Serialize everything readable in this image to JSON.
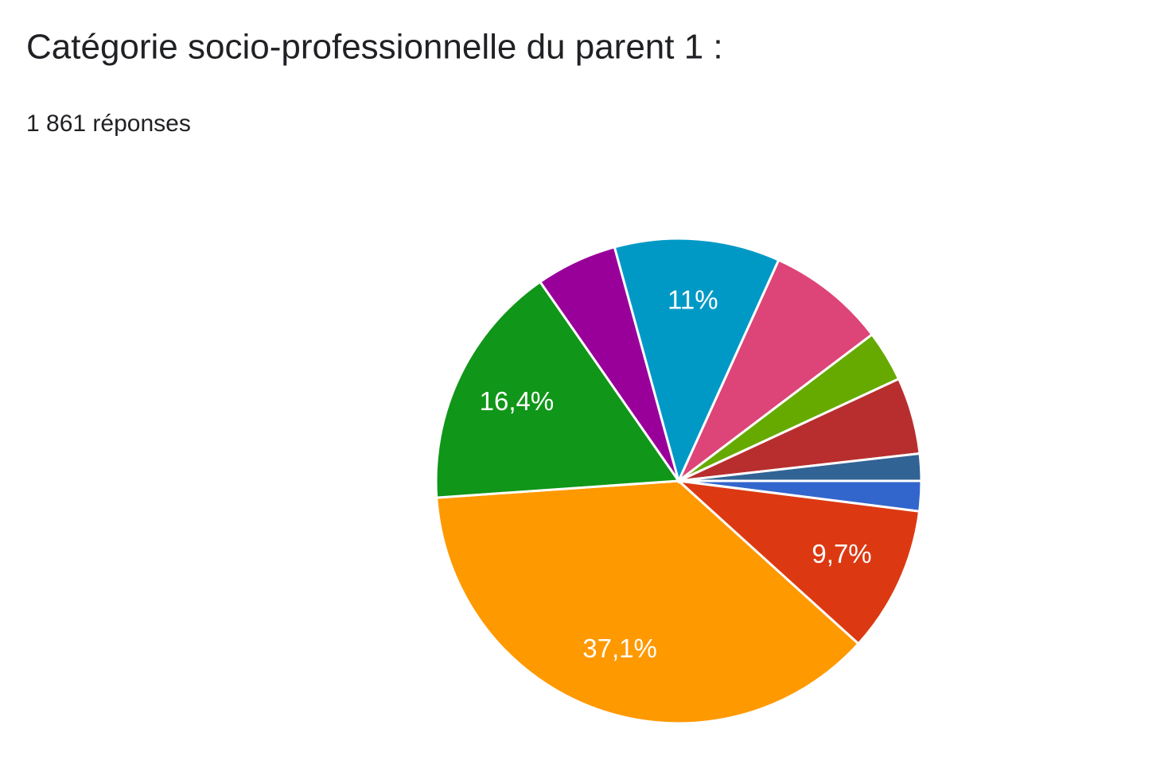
{
  "chart_data": {
    "type": "pie",
    "title": "Catégorie socio-professionnelle du parent 1 :",
    "subtitle": "1 861 réponses",
    "values": [
      2.0,
      9.7,
      37.1,
      16.4,
      5.4,
      11,
      7.9,
      3.4,
      5.1,
      1.8
    ],
    "value_labels": [
      null,
      "9,7%",
      "37,1%",
      "16,4%",
      null,
      "11%",
      null,
      null,
      null,
      null
    ],
    "colors": [
      "#3366cc",
      "#dc3912",
      "#ff9900",
      "#109618",
      "#990099",
      "#0099c6",
      "#dd4477",
      "#66aa00",
      "#b82e2e",
      "#316395"
    ]
  }
}
